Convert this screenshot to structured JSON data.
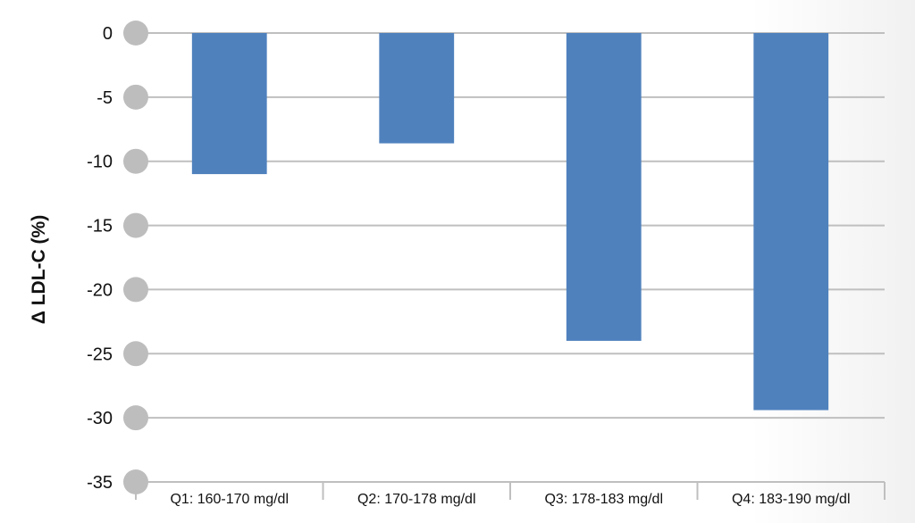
{
  "colors": {
    "bar": "#4f81bd",
    "gridline": "#bfbfbf",
    "tick_dot": "#bdbdbd",
    "text": "#111111"
  },
  "chart_data": {
    "type": "bar",
    "title": "",
    "xlabel": "",
    "ylabel": "Δ LDL-C (%)",
    "ylim": [
      -35,
      0
    ],
    "yticks": [
      0,
      -5,
      -10,
      -15,
      -20,
      -25,
      -30,
      -35
    ],
    "ytick_labels": [
      "0",
      "-5",
      "-10",
      "-15",
      "-20",
      "-25",
      "-30",
      "-35"
    ],
    "grid": true,
    "legend": "none",
    "categories": [
      "Q1: 160-170 mg/dl",
      "Q2: 170-178 mg/dl",
      "Q3: 178-183 mg/dl",
      "Q4: 183-190 mg/dl"
    ],
    "values": [
      -11,
      -8.6,
      -24,
      -29.4
    ]
  }
}
